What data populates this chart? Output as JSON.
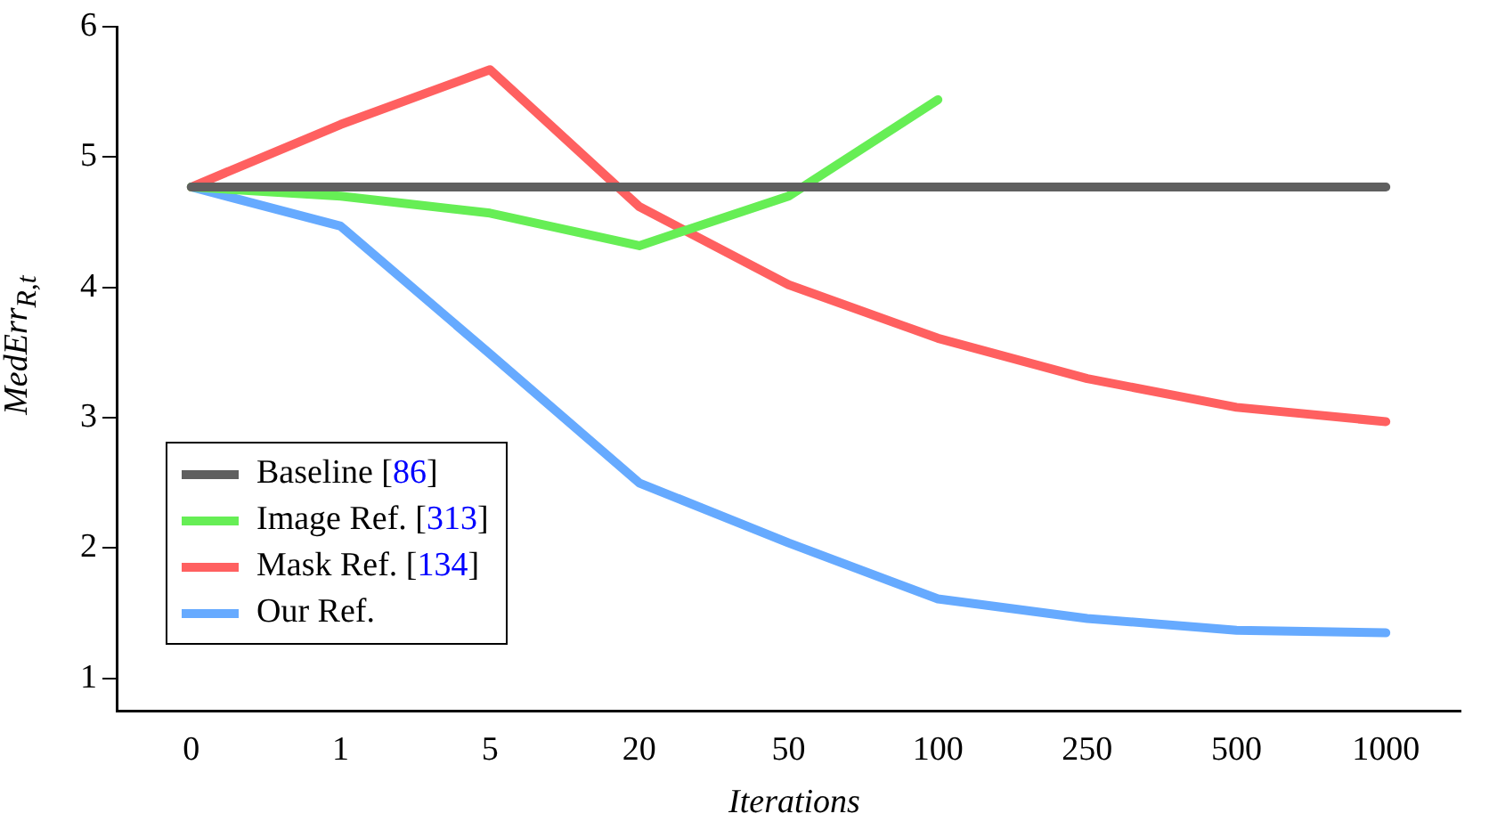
{
  "chart_data": {
    "type": "line",
    "xlabel": "Iterations",
    "ylabel": "MedErr$_{R,t}$",
    "categories": [
      "0",
      "1",
      "5",
      "20",
      "50",
      "100",
      "250",
      "500",
      "1000"
    ],
    "ylim": [
      0.75,
      6
    ],
    "yticks": [
      1,
      2,
      3,
      4,
      5,
      6
    ],
    "grid": false,
    "legend": "bottom left",
    "marker": "none",
    "line_style": "solid",
    "series": [
      {
        "name": "Baseline [86]",
        "color": "#5f5f5f",
        "values": [
          4.77,
          4.77,
          4.77,
          4.77,
          4.77,
          4.77,
          4.77,
          4.77,
          4.77
        ]
      },
      {
        "name": "Image Ref. [313]",
        "color": "#66ee55",
        "values": [
          4.77,
          4.7,
          4.57,
          4.32,
          4.7,
          5.44,
          null,
          null,
          null
        ]
      },
      {
        "name": "Mask Ref. [134]",
        "color": "#ff6060",
        "values": [
          4.77,
          5.25,
          5.67,
          4.62,
          4.02,
          3.61,
          3.3,
          3.08,
          2.97
        ]
      },
      {
        "name": "Our Ref.",
        "color": "#66aaff",
        "values": [
          4.77,
          4.47,
          3.49,
          2.5,
          2.04,
          1.61,
          1.46,
          1.37,
          1.35
        ]
      }
    ]
  }
}
